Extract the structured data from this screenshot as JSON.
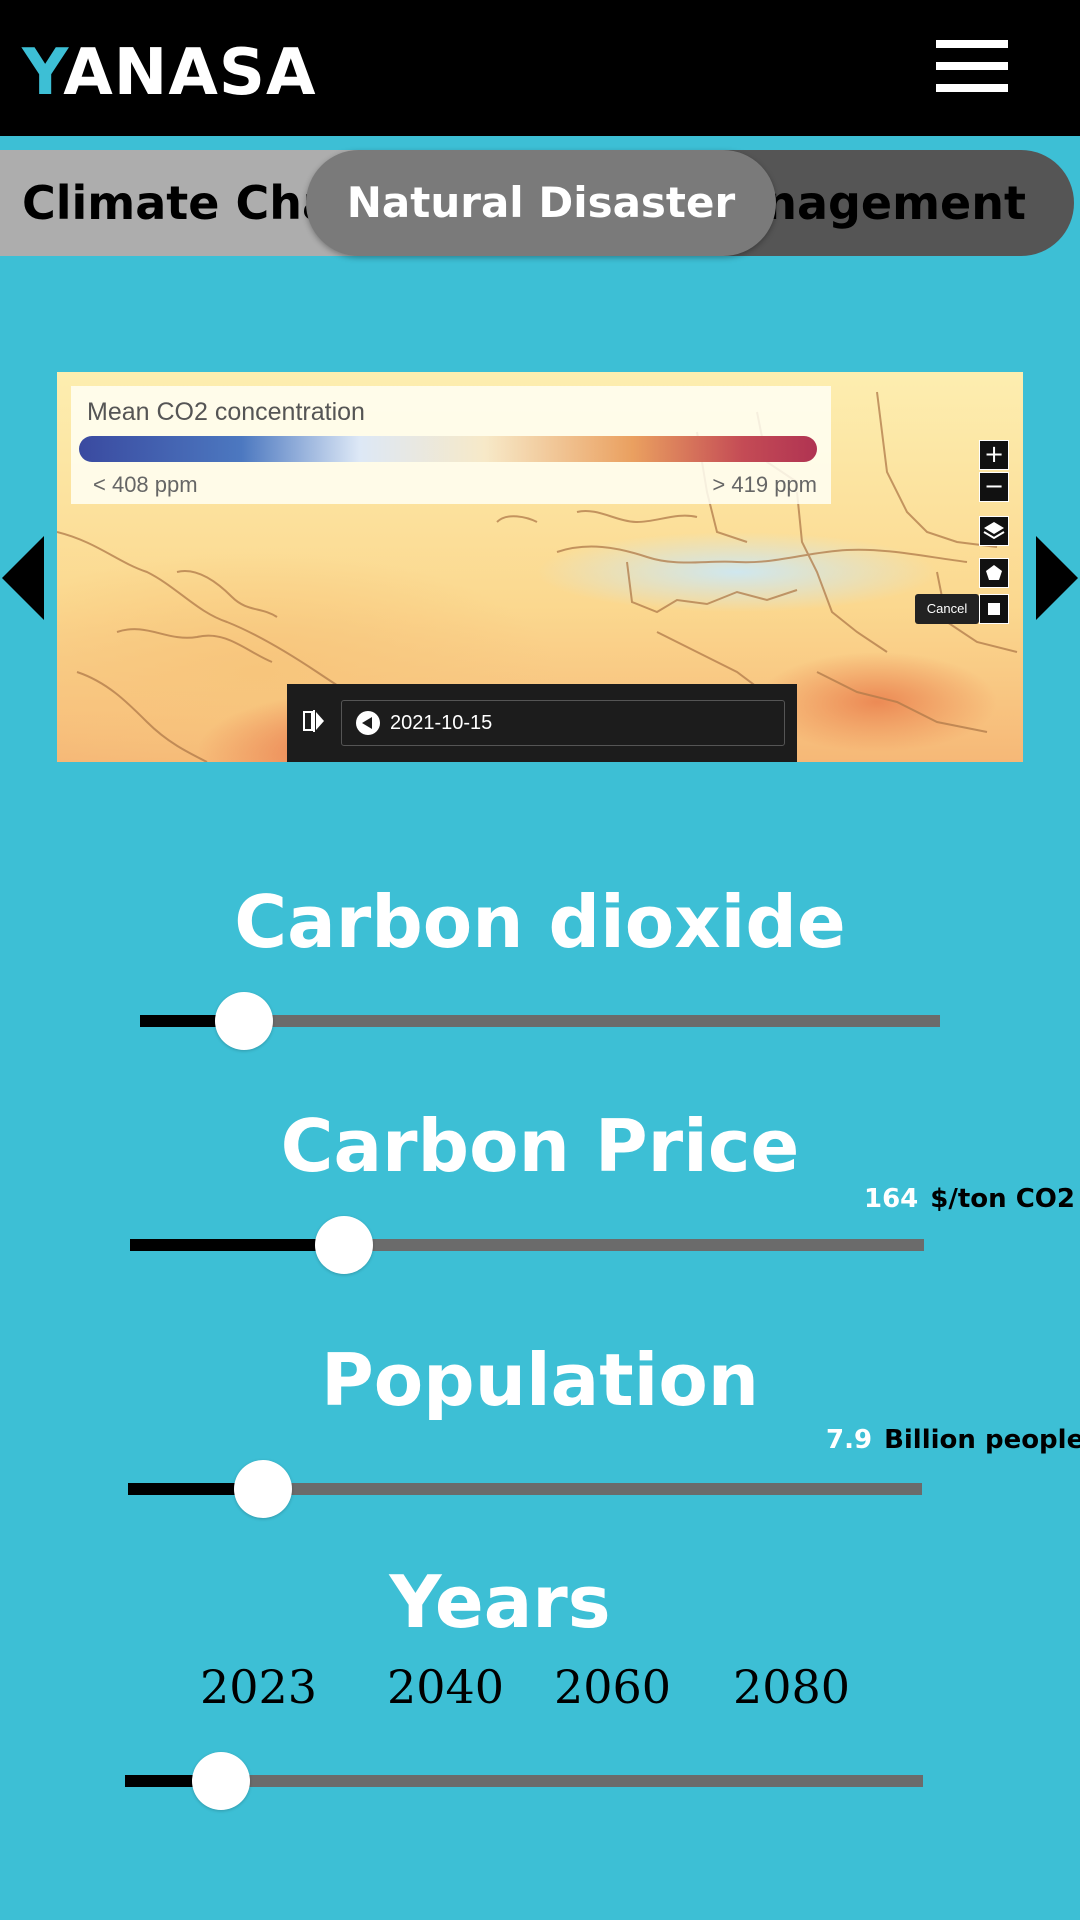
{
  "header": {
    "logo_first": "Y",
    "logo_rest": "ANASA",
    "menu_icon": "hamburger-menu-icon"
  },
  "tabs": [
    {
      "label": "Climate Change",
      "visible_label": "Climate Cha"
    },
    {
      "label": "Natural Disaster",
      "active": true
    },
    {
      "label": "Management",
      "visible_label": "anagement"
    }
  ],
  "map": {
    "legend_title": "Mean CO2 concentration",
    "legend_min": "< 408 ppm",
    "legend_max": "> 419 ppm",
    "zoom_in": "+",
    "zoom_out": "−",
    "cancel_label": "Cancel",
    "date": "2021-10-15",
    "colors": {
      "low": "#3a4aa0",
      "high": "#b03352"
    }
  },
  "sliders": {
    "carbon_dioxide": {
      "title": "Carbon dioxide",
      "fraction": 0.13
    },
    "carbon_price": {
      "title": "Carbon Price",
      "value": "164",
      "unit": "$/ton CO2",
      "fraction": 0.27
    },
    "population": {
      "title": "Population",
      "value": "7.9",
      "unit": "Billion people",
      "fraction": 0.17
    },
    "years": {
      "title": "Years",
      "labels": [
        "2023",
        "2040",
        "2060",
        "2080"
      ],
      "fraction": 0.12
    }
  },
  "colors": {
    "background": "#3dbfd5",
    "accent": "#3dbfd5",
    "track": "#6b6b6b",
    "fill": "#000000"
  }
}
